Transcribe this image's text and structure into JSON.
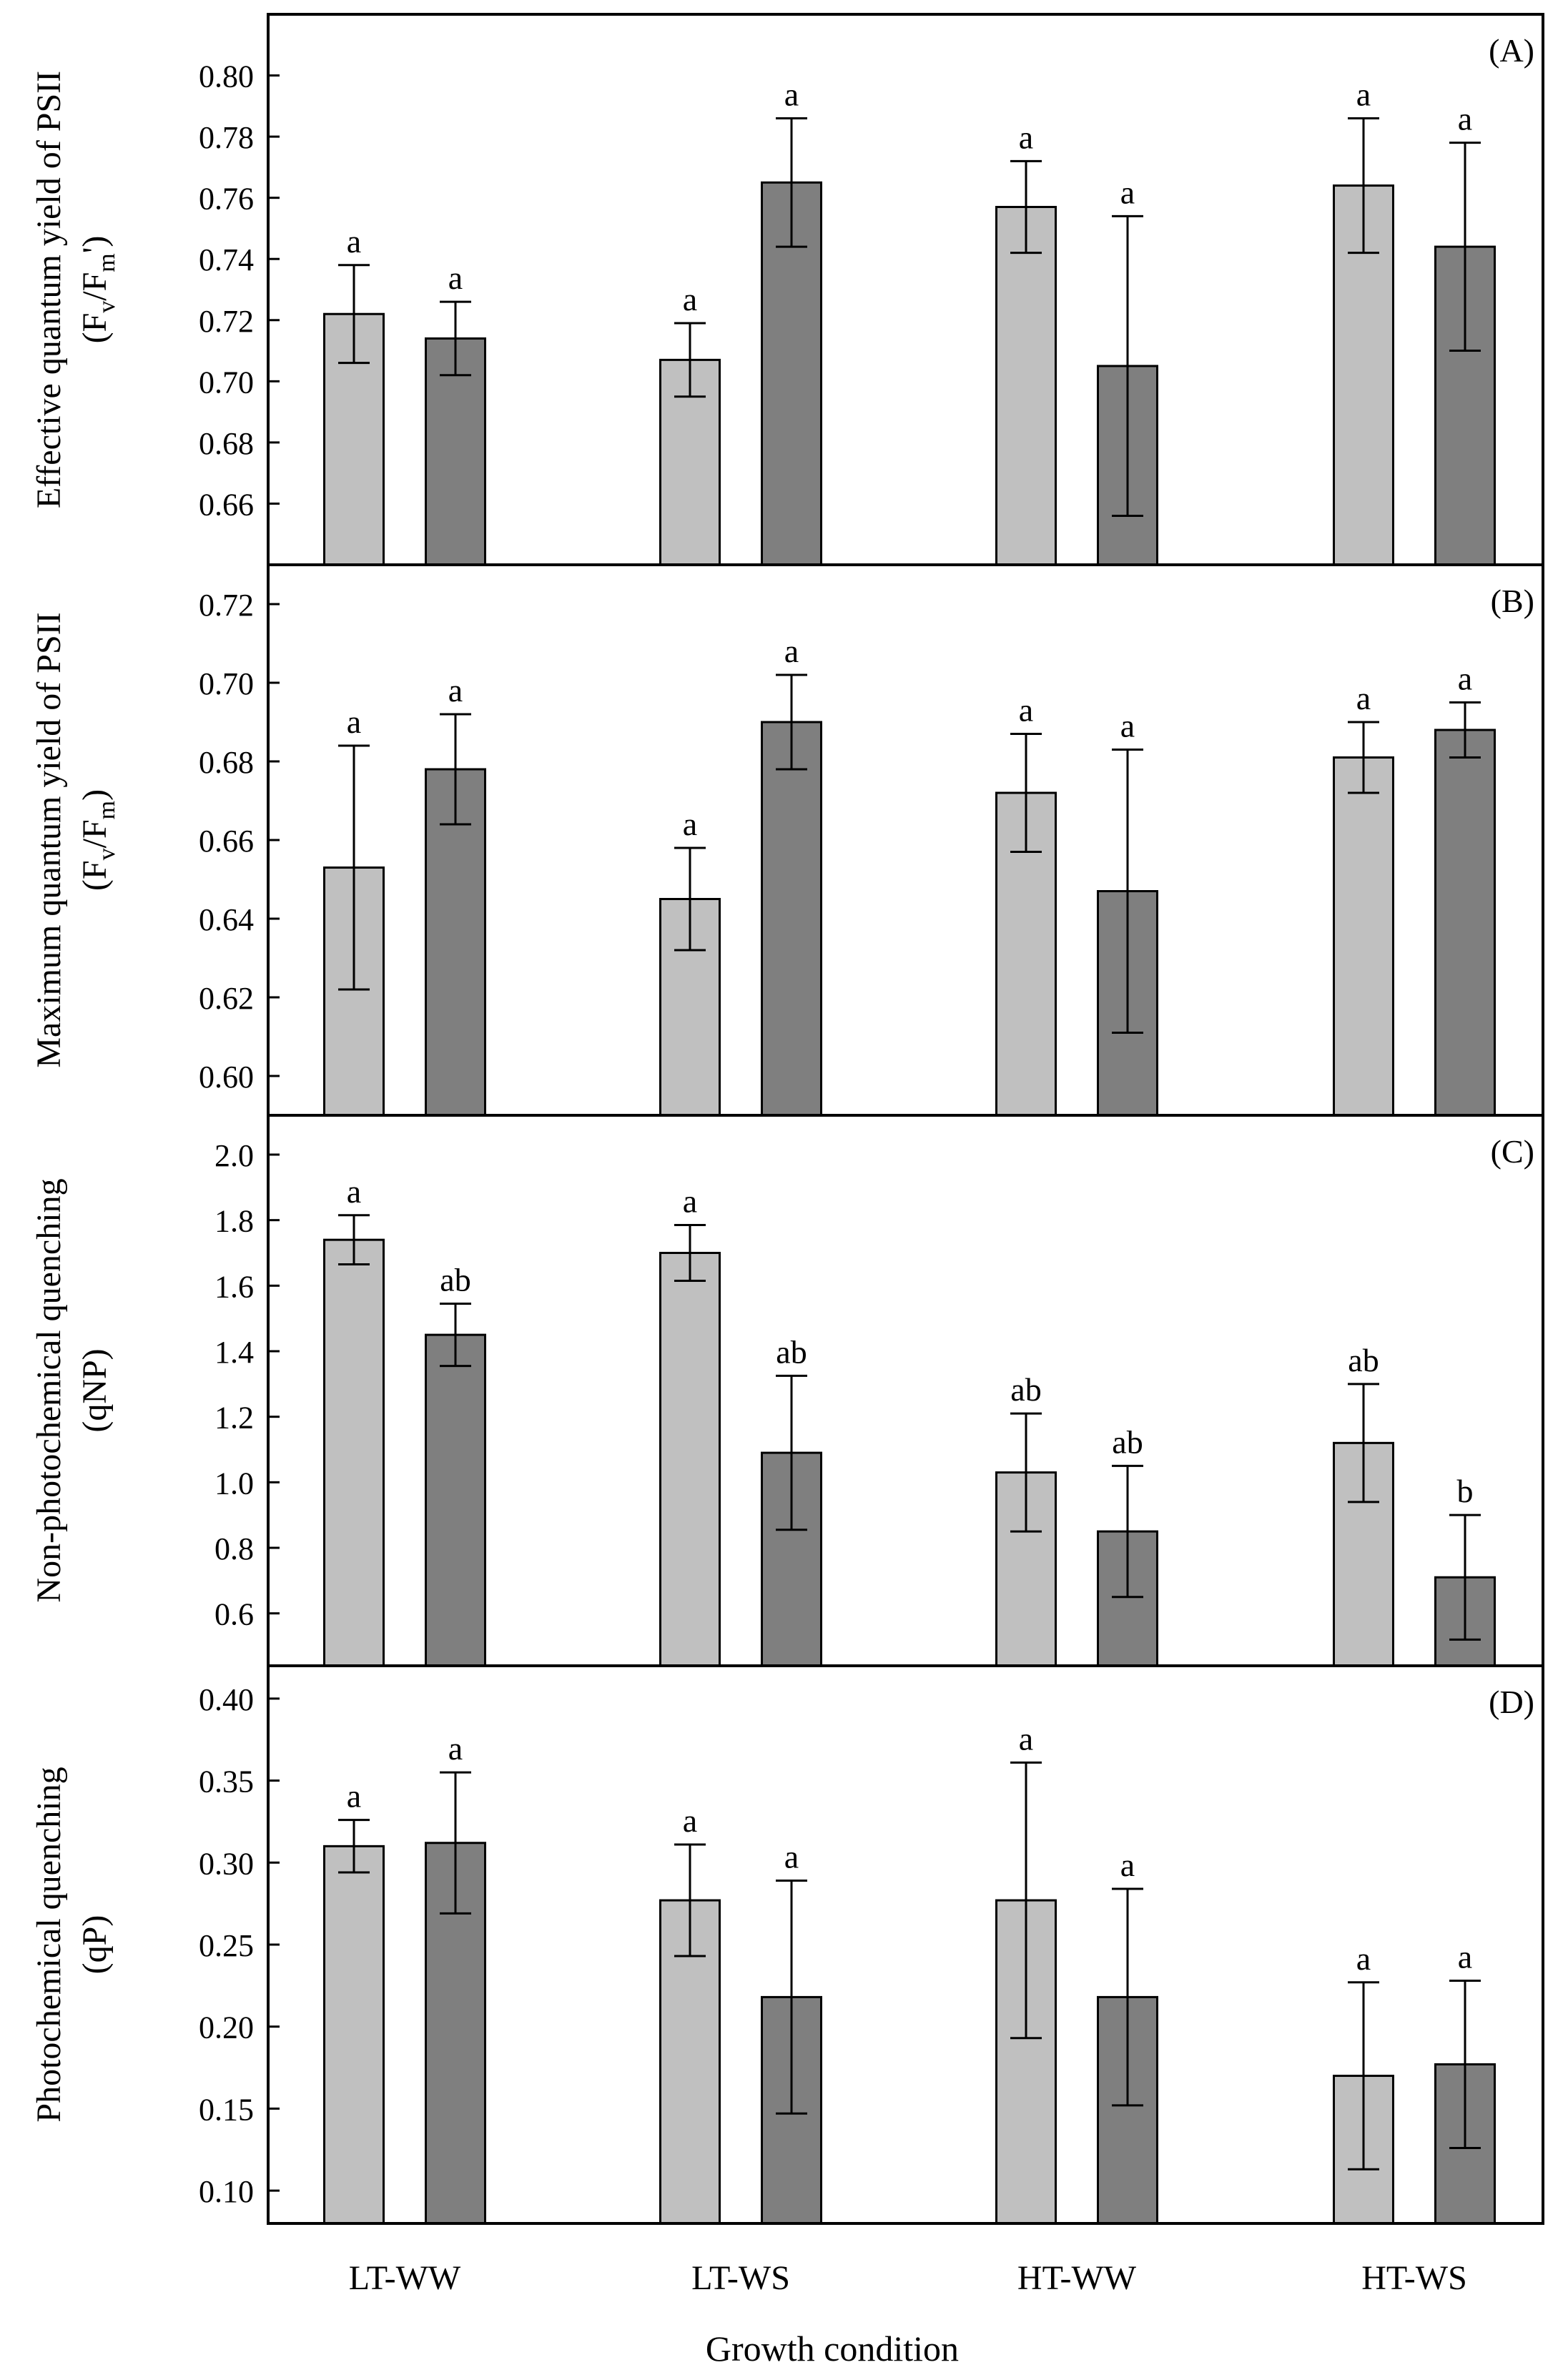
{
  "figure": {
    "xlabel": "Growth condition",
    "categories": [
      "LT-WW",
      "LT-WS",
      "HT-WW",
      "HT-WS"
    ],
    "colors": {
      "light_bar": "#c0c0c0",
      "dark_bar": "#7f7f7f",
      "axis": "#000000"
    }
  },
  "chart_data": [
    {
      "type": "bar",
      "panel": "(A)",
      "ylabel": [
        "Effective quantum yield of PSII",
        "(F",
        "v",
        "/F",
        "m",
        "')"
      ],
      "ylim": [
        0.64,
        0.82
      ],
      "yticks": [
        0.66,
        0.68,
        0.7,
        0.72,
        0.74,
        0.76,
        0.78,
        0.8
      ],
      "ytick_labels": [
        "0.66",
        "0.68",
        "0.70",
        "0.72",
        "0.74",
        "0.76",
        "0.78",
        "0.80"
      ],
      "categories": [
        "LT-WW",
        "LT-WS",
        "HT-WW",
        "HT-WS"
      ],
      "series": [
        {
          "name": "light",
          "values": [
            0.722,
            0.707,
            0.757,
            0.764
          ],
          "errors": [
            0.016,
            0.012,
            0.015,
            0.022
          ],
          "letters": [
            "a",
            "a",
            "a",
            "a"
          ]
        },
        {
          "name": "dark",
          "values": [
            0.714,
            0.765,
            0.705,
            0.744
          ],
          "errors": [
            0.012,
            0.021,
            0.049,
            0.034
          ],
          "letters": [
            "a",
            "a",
            "a",
            "a"
          ]
        }
      ]
    },
    {
      "type": "bar",
      "panel": "(B)",
      "ylabel": [
        "Maximum quantum yield of PSII",
        "(F",
        "v",
        "/F",
        "m",
        ")"
      ],
      "ylim": [
        0.59,
        0.73
      ],
      "yticks": [
        0.6,
        0.62,
        0.64,
        0.66,
        0.68,
        0.7,
        0.72
      ],
      "ytick_labels": [
        "0.60",
        "0.62",
        "0.64",
        "0.66",
        "0.68",
        "0.70",
        "0.72"
      ],
      "categories": [
        "LT-WW",
        "LT-WS",
        "HT-WW",
        "HT-WS"
      ],
      "series": [
        {
          "name": "light",
          "values": [
            0.653,
            0.645,
            0.672,
            0.681
          ],
          "errors": [
            0.031,
            0.013,
            0.015,
            0.009
          ],
          "letters": [
            "a",
            "a",
            "a",
            "a"
          ]
        },
        {
          "name": "dark",
          "values": [
            0.678,
            0.69,
            0.647,
            0.688
          ],
          "errors": [
            0.014,
            0.012,
            0.036,
            0.007
          ],
          "letters": [
            "a",
            "a",
            "a",
            "a"
          ]
        }
      ]
    },
    {
      "type": "bar",
      "panel": "(C)",
      "ylabel": [
        "Non-photochemical quenching",
        "(qNP)"
      ],
      "ylim": [
        0.44,
        2.12
      ],
      "yticks": [
        0.6,
        0.8,
        1.0,
        1.2,
        1.4,
        1.6,
        1.8,
        2.0
      ],
      "ytick_labels": [
        "0.6",
        "0.8",
        "1.0",
        "1.2",
        "1.4",
        "1.6",
        "1.8",
        "2.0"
      ],
      "categories": [
        "LT-WW",
        "LT-WS",
        "HT-WW",
        "HT-WS"
      ],
      "series": [
        {
          "name": "light",
          "values": [
            1.74,
            1.7,
            1.03,
            1.12
          ],
          "errors": [
            0.075,
            0.085,
            0.18,
            0.18
          ],
          "letters": [
            "a",
            "a",
            "ab",
            "ab"
          ]
        },
        {
          "name": "dark",
          "values": [
            1.45,
            1.09,
            0.85,
            0.71
          ],
          "errors": [
            0.095,
            0.235,
            0.2,
            0.19
          ],
          "letters": [
            "ab",
            "ab",
            "ab",
            "b"
          ]
        }
      ]
    },
    {
      "type": "bar",
      "panel": "(D)",
      "ylabel": [
        "Photochemical quenching",
        "(qP)"
      ],
      "ylim": [
        0.08,
        0.42
      ],
      "yticks": [
        0.1,
        0.15,
        0.2,
        0.25,
        0.3,
        0.35,
        0.4
      ],
      "ytick_labels": [
        "0.10",
        "0.15",
        "0.20",
        "0.25",
        "0.30",
        "0.35",
        "0.40"
      ],
      "categories": [
        "LT-WW",
        "LT-WS",
        "HT-WW",
        "HT-WS"
      ],
      "series": [
        {
          "name": "light",
          "values": [
            0.31,
            0.277,
            0.277,
            0.17
          ],
          "errors": [
            0.016,
            0.034,
            0.084,
            0.057
          ],
          "letters": [
            "a",
            "a",
            "a",
            "a"
          ]
        },
        {
          "name": "dark",
          "values": [
            0.312,
            0.218,
            0.218,
            0.177
          ],
          "errors": [
            0.043,
            0.071,
            0.066,
            0.051
          ],
          "letters": [
            "a",
            "a",
            "a",
            "a"
          ]
        }
      ]
    }
  ]
}
